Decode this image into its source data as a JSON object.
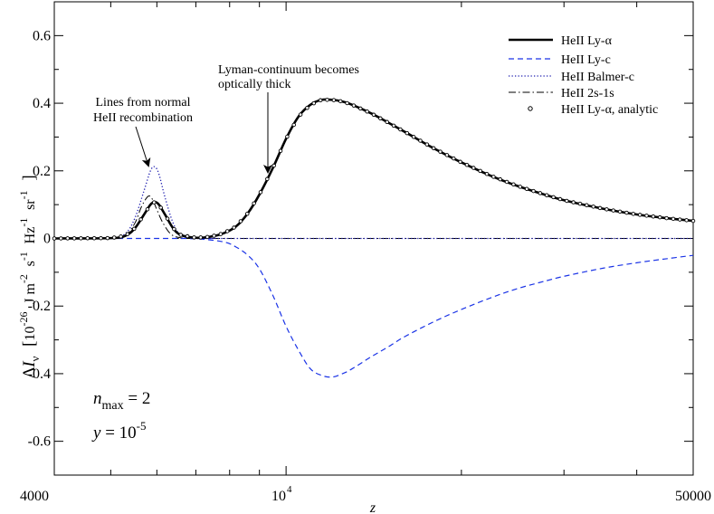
{
  "chart_data": {
    "type": "line",
    "xscale": "log",
    "xlim": [
      4000,
      50000
    ],
    "ylim": [
      -0.7,
      0.7
    ],
    "xlabel": "z",
    "ylabel_parts": {
      "delta": "Δ",
      "I": "I",
      "nu": "ν",
      "open": "[",
      "ten": "10",
      "exp26": "-26",
      "J": "J m",
      "m_exp": "-2",
      "s": "s",
      "s_exp": "-1",
      "Hz": "Hz",
      "hz_exp": "-1",
      "sr": "sr",
      "sr_exp": "-1",
      "close": "]"
    },
    "x_ticks": [
      {
        "value": 4000,
        "base": "4000",
        "exp": ""
      },
      {
        "value": 10000,
        "base": "10",
        "exp": "4"
      },
      {
        "value": 50000,
        "base": "50000",
        "exp": ""
      }
    ],
    "y_ticks": [
      {
        "value": -0.6,
        "label": "-0.6"
      },
      {
        "value": -0.4,
        "label": "-0.4"
      },
      {
        "value": -0.2,
        "label": "-0.2"
      },
      {
        "value": 0,
        "label": "0"
      },
      {
        "value": 0.2,
        "label": "0.2"
      },
      {
        "value": 0.4,
        "label": "0.4"
      },
      {
        "value": 0.6,
        "label": "0.6"
      }
    ],
    "legend": {
      "placement": "top-right",
      "entries": [
        {
          "label": "HeII Ly-α",
          "style": "solid-thick",
          "color": "#000000"
        },
        {
          "label": "HeII Ly-c",
          "style": "dashed",
          "color": "#1a33e6"
        },
        {
          "label": "HeII Balmer-c",
          "style": "dotted",
          "color": "#2020b0"
        },
        {
          "label": "HeII 2s-1s",
          "style": "dashdot",
          "color": "#000000"
        },
        {
          "label": "HeII Ly-α, analytic",
          "style": "marker",
          "color": "#000000"
        }
      ]
    },
    "annotations": [
      {
        "lines": [
          "Lines from normal",
          "HeII recombination"
        ],
        "arrow_to": {
          "x": 5950,
          "y": 0.22
        }
      },
      {
        "lines": [
          "Lyman-continuum becomes",
          "optically thick"
        ],
        "arrow_to": {
          "x": 9250,
          "y": 0.19
        }
      }
    ],
    "params": {
      "n_label": "n",
      "n_sub": "max",
      "n_value": " = 2",
      "y_label": "y",
      "y_value": " = 10",
      "y_exp": "-5"
    },
    "series": [
      {
        "name": "HeII Ly-α",
        "style": "solid-thick",
        "color": "#000000",
        "x": [
          4000,
          5000,
          5300,
          5500,
          5700,
          5850,
          5950,
          6050,
          6200,
          6400,
          6600,
          7000,
          7400,
          7800,
          8200,
          8600,
          9000,
          9500,
          10000,
          10500,
          11000,
          11500,
          12000,
          12500,
          13000,
          14000,
          15000,
          16000,
          18000,
          20000,
          22500,
          25000,
          28000,
          30000,
          35000,
          40000,
          45000,
          50000
        ],
        "y": [
          0,
          0.001,
          0.008,
          0.03,
          0.07,
          0.1,
          0.108,
          0.1,
          0.07,
          0.03,
          0.01,
          0.002,
          0.005,
          0.015,
          0.035,
          0.075,
          0.13,
          0.21,
          0.295,
          0.36,
          0.395,
          0.41,
          0.41,
          0.405,
          0.395,
          0.37,
          0.342,
          0.315,
          0.265,
          0.225,
          0.185,
          0.155,
          0.128,
          0.113,
          0.088,
          0.071,
          0.06,
          0.052
        ]
      },
      {
        "name": "HeII Ly-c",
        "style": "dashed",
        "color": "#1a33e6",
        "x": [
          4000,
          6000,
          7000,
          7800,
          8200,
          8600,
          9000,
          9500,
          10000,
          10500,
          11000,
          11500,
          12000,
          12500,
          13000,
          14000,
          15000,
          16000,
          18000,
          20000,
          22500,
          25000,
          28000,
          30000,
          35000,
          40000,
          45000,
          50000
        ],
        "y": [
          0,
          0,
          -0.001,
          -0.01,
          -0.025,
          -0.05,
          -0.09,
          -0.17,
          -0.26,
          -0.33,
          -0.385,
          -0.405,
          -0.41,
          -0.4,
          -0.385,
          -0.35,
          -0.32,
          -0.29,
          -0.245,
          -0.21,
          -0.175,
          -0.148,
          -0.125,
          -0.112,
          -0.088,
          -0.072,
          -0.06,
          -0.05
        ]
      },
      {
        "name": "HeII Balmer-c",
        "style": "dotted",
        "color": "#2020b0",
        "x": [
          4000,
          5000,
          5300,
          5500,
          5700,
          5850,
          5950,
          6050,
          6200,
          6400,
          6600,
          7000,
          7500,
          8000,
          50000
        ],
        "y": [
          0,
          0.001,
          0.015,
          0.06,
          0.14,
          0.2,
          0.212,
          0.19,
          0.12,
          0.045,
          0.01,
          0.001,
          0.0,
          0.0,
          0.0
        ]
      },
      {
        "name": "HeII 2s-1s",
        "style": "dashdot",
        "color": "#000000",
        "x": [
          4000,
          5000,
          5300,
          5500,
          5650,
          5800,
          5900,
          6000,
          6150,
          6350,
          6600,
          7000,
          7500,
          50000
        ],
        "y": [
          0,
          0.001,
          0.01,
          0.045,
          0.095,
          0.125,
          0.115,
          0.085,
          0.045,
          0.012,
          0.002,
          0.0,
          0.0,
          0.0
        ]
      },
      {
        "name": "HeII Ly-α, analytic",
        "style": "marker",
        "color": "#000000",
        "sample_from": "HeII Ly-α"
      }
    ]
  }
}
